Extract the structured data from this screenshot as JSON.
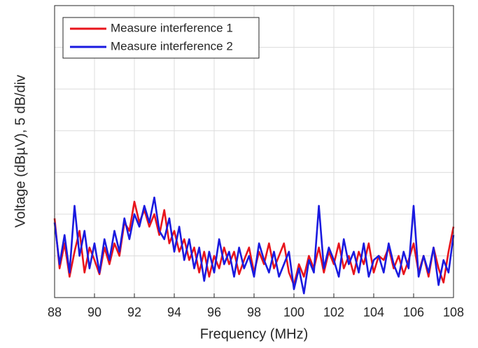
{
  "chart_data": {
    "type": "line",
    "x_label": "Frequency (MHz)",
    "y_label": "Voltage (dBµV), 5 dB/div",
    "x": [
      88,
      88.25,
      88.5,
      88.75,
      89,
      89.25,
      89.5,
      89.75,
      90,
      90.25,
      90.5,
      90.75,
      91,
      91.25,
      91.5,
      91.75,
      92,
      92.25,
      92.5,
      92.75,
      93,
      93.25,
      93.5,
      93.75,
      94,
      94.25,
      94.5,
      94.75,
      95,
      95.25,
      95.5,
      95.75,
      96,
      96.25,
      96.5,
      96.75,
      97,
      97.25,
      97.5,
      97.75,
      98,
      98.25,
      98.5,
      98.75,
      99,
      99.25,
      99.5,
      99.75,
      100,
      100.25,
      100.5,
      100.75,
      101,
      101.25,
      101.5,
      101.75,
      102,
      102.25,
      102.5,
      102.75,
      103,
      103.25,
      103.5,
      103.75,
      104,
      104.25,
      104.5,
      104.75,
      105,
      105.25,
      105.5,
      105.75,
      106,
      106.25,
      106.5,
      106.75,
      107,
      107.25,
      107.5,
      107.75,
      108
    ],
    "series": [
      {
        "name": "Measure interference 1",
        "color": "#e8141c",
        "values": [
          9.5,
          3.5,
          6.5,
          2.5,
          5.5,
          8,
          3,
          6,
          4.5,
          2.8,
          6,
          4,
          6.5,
          5,
          9,
          8,
          11.5,
          9,
          10.5,
          8.5,
          10,
          7.5,
          10.5,
          6.5,
          8,
          5.5,
          7,
          4.5,
          6,
          3,
          5.5,
          2.5,
          5,
          3.5,
          6,
          4,
          5.5,
          2.8,
          4.5,
          6,
          3,
          5.5,
          4,
          6.5,
          3.5,
          5,
          6.5,
          3,
          1.5,
          4,
          2.5,
          5,
          3.5,
          6,
          3,
          5.5,
          4,
          6.5,
          3.5,
          5,
          2.8,
          5.5,
          4,
          6.5,
          3,
          5,
          4.5,
          6,
          3.5,
          5,
          2.8,
          4.5,
          6.5,
          3,
          5,
          2.5,
          6,
          3.5,
          1.8,
          5.5,
          8.5
        ]
      },
      {
        "name": "Measure interference 2",
        "color": "#1a1ae0",
        "values": [
          9,
          4,
          7.5,
          3,
          11,
          5,
          8,
          3.5,
          6.5,
          3,
          7,
          4.5,
          8,
          5.5,
          9.5,
          7,
          10,
          8.5,
          11,
          9,
          12,
          8,
          7,
          9.5,
          5.5,
          8.5,
          4.5,
          7,
          3.5,
          6,
          2,
          5.5,
          3,
          7,
          4,
          5.5,
          2.5,
          6,
          3.5,
          5,
          2.5,
          6.5,
          4.5,
          3,
          5.5,
          2.5,
          4,
          5.5,
          1,
          3.5,
          0.5,
          4.5,
          3,
          11,
          3.5,
          6,
          4.5,
          2.5,
          7,
          4,
          5.5,
          3,
          6.5,
          2.5,
          4.5,
          5,
          3,
          6.5,
          4,
          2.5,
          5.5,
          3.5,
          11,
          2.5,
          5,
          3,
          6,
          1.5,
          4.5,
          3,
          7.5
        ]
      }
    ],
    "xlim": [
      88,
      108
    ],
    "xticks": [
      88,
      90,
      92,
      94,
      96,
      98,
      100,
      102,
      104,
      106,
      108
    ],
    "ylim": [
      0,
      35
    ],
    "yticks": [
      0,
      5,
      10,
      15,
      20,
      25,
      30,
      35
    ],
    "grid": true,
    "legend": "upper left"
  }
}
